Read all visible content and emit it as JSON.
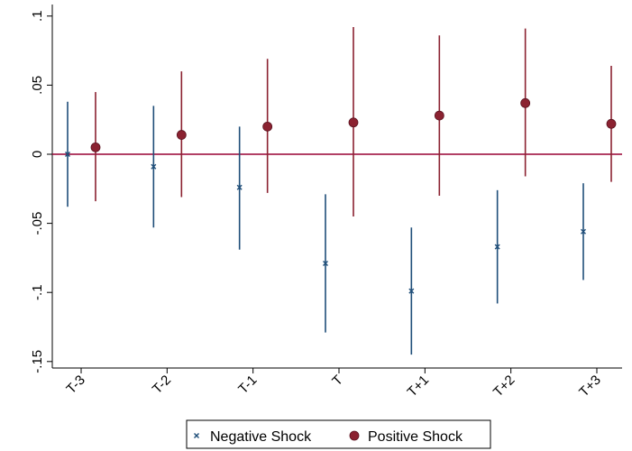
{
  "chart_data": {
    "type": "scatter",
    "title": "",
    "xlabel": "",
    "ylabel": "",
    "categories": [
      "T-3",
      "T-2",
      "T-1",
      "T",
      "T+1",
      "T+2",
      "T+3"
    ],
    "ylim": [
      -0.155,
      0.1
    ],
    "y_ticks": [
      {
        "value": 0.1,
        "label": ".1"
      },
      {
        "value": 0.05,
        "label": ".05"
      },
      {
        "value": 0,
        "label": "0"
      },
      {
        "value": -0.05,
        "label": "-.05"
      },
      {
        "value": -0.1,
        "label": "-.1"
      },
      {
        "value": -0.15,
        "label": "-.15"
      }
    ],
    "reference_line": {
      "value": 0,
      "color": "#990033"
    },
    "grid": false,
    "legend_position": "bottom",
    "series": [
      {
        "name": "Negative Shock",
        "marker": "x",
        "color": "#1f4e79",
        "values": [
          0.0,
          -0.009,
          -0.024,
          -0.079,
          -0.099,
          -0.067,
          -0.056
        ],
        "ci_low": [
          -0.038,
          -0.053,
          -0.069,
          -0.129,
          -0.145,
          -0.108,
          -0.091
        ],
        "ci_high": [
          0.038,
          0.035,
          0.02,
          -0.029,
          -0.053,
          -0.026,
          -0.021
        ]
      },
      {
        "name": "Positive Shock",
        "marker": "circle",
        "color": "#8b2231",
        "values": [
          0.005,
          0.014,
          0.02,
          0.023,
          0.028,
          0.037,
          0.022
        ],
        "ci_low": [
          -0.034,
          -0.031,
          -0.028,
          -0.045,
          -0.03,
          -0.016,
          -0.02
        ],
        "ci_high": [
          0.045,
          0.06,
          0.069,
          0.092,
          0.086,
          0.091,
          0.064
        ]
      }
    ]
  }
}
